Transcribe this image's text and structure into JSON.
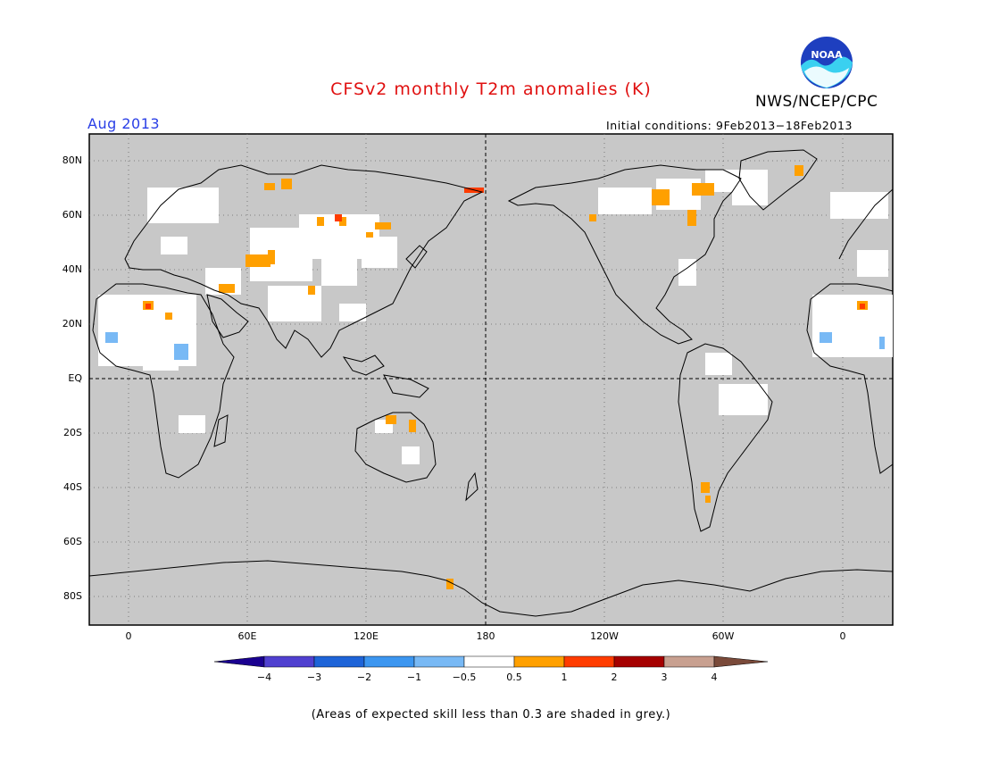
{
  "header": {
    "title": "CFSv2 monthly T2m anomalies (K)",
    "agency": "NWS/NCEP/CPC",
    "month": "Aug 2013",
    "initial_conditions": "Initial conditions: 9Feb2013−18Feb2013",
    "logo_text": "NOAA"
  },
  "map": {
    "lat_labels": [
      "80N",
      "60N",
      "40N",
      "20N",
      "EQ",
      "20S",
      "40S",
      "60S",
      "80S"
    ],
    "lon_labels": [
      "0",
      "60E",
      "120E",
      "180",
      "120W",
      "60W",
      "0"
    ],
    "background_color": "#c8c8c8"
  },
  "colorbar": {
    "labels": [
      "−4",
      "−3",
      "−2",
      "−1",
      "−0.5",
      "0.5",
      "1",
      "2",
      "3",
      "4"
    ],
    "colors": [
      "#1a0090",
      "#5040d0",
      "#1e64d8",
      "#3c96f0",
      "#78b9f5",
      "#ffffff",
      "#ffa000",
      "#ff3c00",
      "#a50000",
      "#c8a090",
      "#7a4a3a"
    ]
  },
  "footer": {
    "note": "(Areas of expected skill less than 0.3 are shaded in grey.)"
  }
}
